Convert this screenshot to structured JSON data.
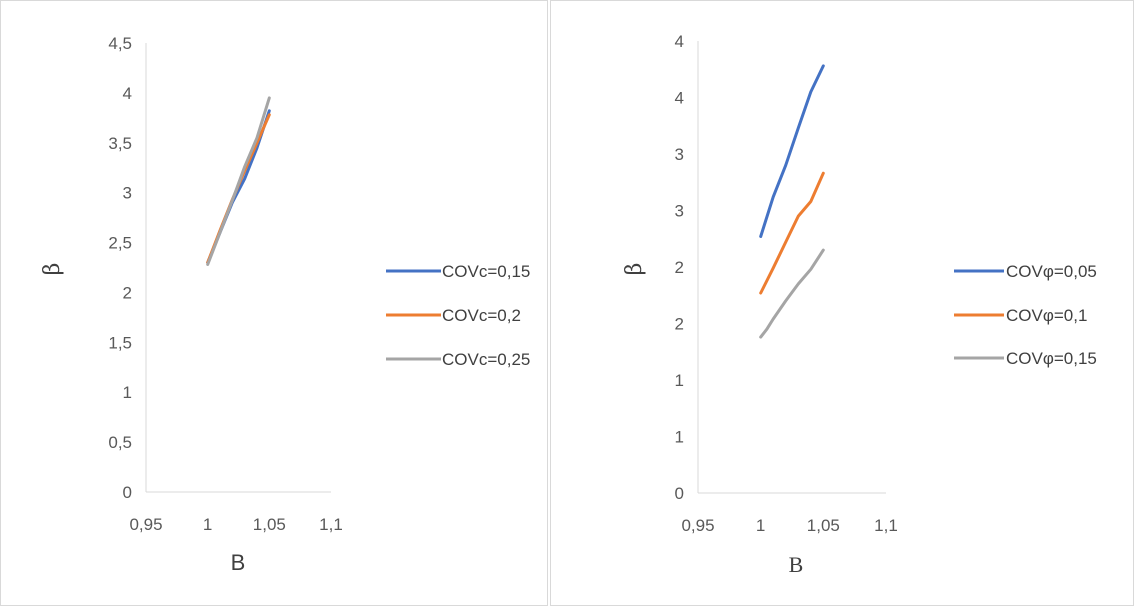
{
  "chart_data": [
    {
      "type": "line",
      "title": "",
      "xlabel": "B",
      "ylabel": "β",
      "xlim": [
        0.95,
        1.1
      ],
      "ylim": [
        0,
        4.5
      ],
      "xticks": [
        0.95,
        1,
        1.05,
        1.1
      ],
      "xtick_labels": [
        "0,95",
        "1",
        "1,05",
        "1,1"
      ],
      "yticks": [
        0,
        0.5,
        1,
        1.5,
        2,
        2.5,
        3,
        3.5,
        4,
        4.5
      ],
      "ytick_labels": [
        "0",
        "0,5",
        "1",
        "1,5",
        "2",
        "2,5",
        "3",
        "3,5",
        "4",
        "4,5"
      ],
      "grid": false,
      "legend_position": "right",
      "series": [
        {
          "name": "COVc=0,15",
          "color": "#4472C4",
          "x": [
            1,
            1.01,
            1.02,
            1.03,
            1.04,
            1.05
          ],
          "y": [
            2.3,
            2.6,
            2.9,
            3.14,
            3.45,
            3.82
          ]
        },
        {
          "name": "COVc=0,2",
          "color": "#ED7D31",
          "x": [
            1,
            1.01,
            1.02,
            1.03,
            1.04,
            1.05
          ],
          "y": [
            2.3,
            2.62,
            2.93,
            3.22,
            3.5,
            3.78
          ]
        },
        {
          "name": "COVc=0,25",
          "color": "#A5A5A5",
          "x": [
            1,
            1.01,
            1.02,
            1.03,
            1.04,
            1.05
          ],
          "y": [
            2.28,
            2.6,
            2.92,
            3.26,
            3.55,
            3.95
          ]
        }
      ]
    },
    {
      "type": "line",
      "title": "",
      "xlabel": "B",
      "ylabel": "β",
      "xlim": [
        0.95,
        1.1
      ],
      "ylim": [
        0,
        4
      ],
      "xticks": [
        0.95,
        1,
        1.05,
        1.1
      ],
      "xtick_labels": [
        "0,95",
        "1",
        "1,05",
        "1,1"
      ],
      "yticks": [
        0,
        0.5,
        1,
        1.5,
        2,
        2.5,
        3,
        3.5,
        4
      ],
      "ytick_labels": [
        "0",
        "1",
        "1",
        "2",
        "2",
        "3",
        "3",
        "4",
        "4"
      ],
      "grid": false,
      "legend_position": "right",
      "series": [
        {
          "name": "COVφ=0,05",
          "color": "#4472C4",
          "x": [
            1,
            1.01,
            1.02,
            1.03,
            1.04,
            1.05
          ],
          "y": [
            2.27,
            2.62,
            2.9,
            3.23,
            3.55,
            3.78
          ]
        },
        {
          "name": "COVφ=0,1",
          "color": "#ED7D31",
          "x": [
            1,
            1.01,
            1.02,
            1.03,
            1.04,
            1.05
          ],
          "y": [
            1.77,
            1.99,
            2.22,
            2.45,
            2.58,
            2.83
          ]
        },
        {
          "name": "COVφ=0,15",
          "color": "#A5A5A5",
          "x": [
            1,
            1.005,
            1.01,
            1.02,
            1.03,
            1.04,
            1.05
          ],
          "y": [
            1.38,
            1.45,
            1.54,
            1.7,
            1.85,
            1.98,
            2.15
          ]
        }
      ]
    }
  ]
}
